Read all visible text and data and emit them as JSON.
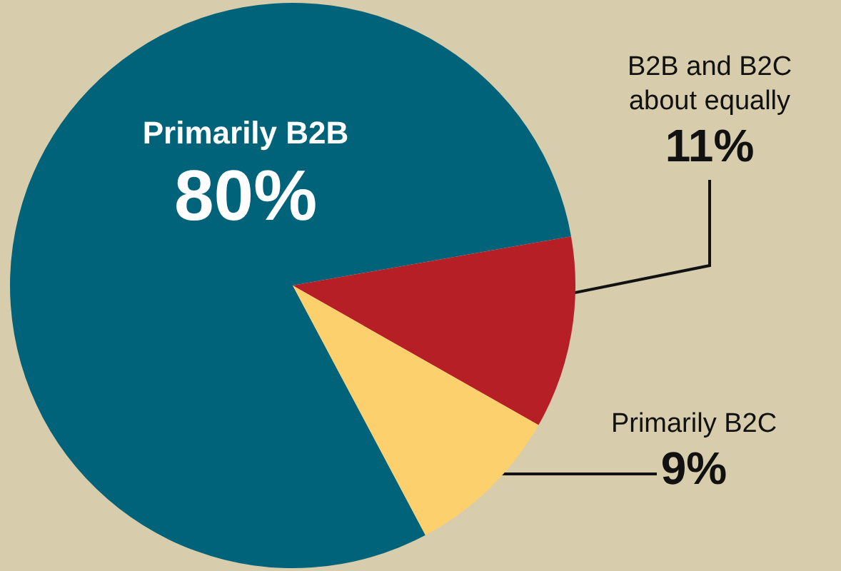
{
  "chart_data": {
    "type": "pie",
    "categories": [
      "Primarily B2B",
      "B2B and B2C about equally",
      "Primarily B2C"
    ],
    "values": [
      80,
      11,
      9
    ],
    "value_labels": [
      "80%",
      "11%",
      "9%"
    ],
    "colors": [
      "#00637a",
      "#b71f27",
      "#fdd06e"
    ],
    "legend": false
  }
}
